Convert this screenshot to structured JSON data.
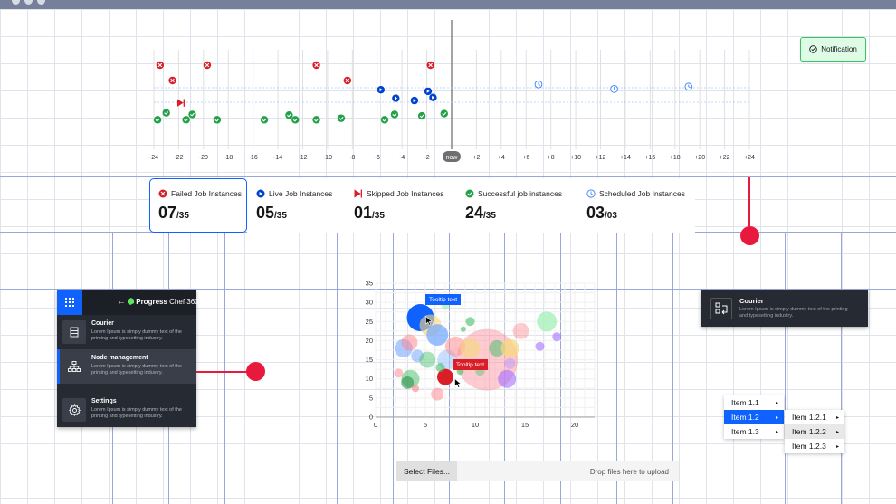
{
  "timeline": {
    "ticks": [
      "-24",
      "-22",
      "-20",
      "-18",
      "-16",
      "-14",
      "-12",
      "-10",
      "-8",
      "-6",
      "-4",
      "-2",
      "now",
      "+2",
      "+4",
      "+6",
      "+8",
      "+10",
      "+12",
      "+14",
      "+16",
      "+18",
      "+20",
      "+22",
      "+24"
    ],
    "now_label": "now",
    "events": [
      {
        "t": -23.5,
        "row": 1,
        "kind": "failed"
      },
      {
        "t": -22.5,
        "row": 2,
        "kind": "failed"
      },
      {
        "t": -19.7,
        "row": 1,
        "kind": "failed"
      },
      {
        "t": -10.9,
        "row": 1,
        "kind": "failed"
      },
      {
        "t": -8.4,
        "row": 2,
        "kind": "failed"
      },
      {
        "t": -1.7,
        "row": 1,
        "kind": "failed"
      },
      {
        "t": -21.8,
        "row": 3.45,
        "kind": "skipped"
      },
      {
        "t": -5.7,
        "row": 2.6,
        "kind": "live"
      },
      {
        "t": -4.5,
        "row": 3.15,
        "kind": "live"
      },
      {
        "t": -3.0,
        "row": 3.3,
        "kind": "live"
      },
      {
        "t": -1.9,
        "row": 2.7,
        "kind": "live"
      },
      {
        "t": -1.5,
        "row": 3.1,
        "kind": "live"
      },
      {
        "t": -23.0,
        "row": 4.1,
        "kind": "success"
      },
      {
        "t": -23.7,
        "row": 4.55,
        "kind": "success"
      },
      {
        "t": -21.4,
        "row": 4.55,
        "kind": "success"
      },
      {
        "t": -20.9,
        "row": 4.2,
        "kind": "success"
      },
      {
        "t": -18.9,
        "row": 4.55,
        "kind": "success"
      },
      {
        "t": -15.1,
        "row": 4.55,
        "kind": "success"
      },
      {
        "t": -13.1,
        "row": 4.25,
        "kind": "success"
      },
      {
        "t": -12.6,
        "row": 4.55,
        "kind": "success"
      },
      {
        "t": -10.9,
        "row": 4.55,
        "kind": "success"
      },
      {
        "t": -8.9,
        "row": 4.45,
        "kind": "success"
      },
      {
        "t": -5.4,
        "row": 4.55,
        "kind": "success"
      },
      {
        "t": -4.6,
        "row": 4.2,
        "kind": "success"
      },
      {
        "t": -2.4,
        "row": 4.3,
        "kind": "success"
      },
      {
        "t": -0.6,
        "row": 4.15,
        "kind": "success"
      },
      {
        "t": 7.0,
        "row": 2.25,
        "kind": "scheduled"
      },
      {
        "t": 13.1,
        "row": 2.55,
        "kind": "scheduled"
      },
      {
        "t": 19.1,
        "row": 2.4,
        "kind": "scheduled"
      }
    ]
  },
  "notification": {
    "label": "Notification"
  },
  "stats": [
    {
      "label": "Failed Job Instances",
      "value": "07",
      "total": "/35",
      "kind": "failed",
      "active": true,
      "width": 108
    },
    {
      "label": "Live Job Instances",
      "value": "05",
      "total": "/35",
      "kind": "live",
      "active": false,
      "width": 108
    },
    {
      "label": "Skipped Job Instances",
      "value": "01",
      "total": "/35",
      "kind": "skipped",
      "active": false,
      "width": 123
    },
    {
      "label": "Successful job instances",
      "value": "24",
      "total": "/35",
      "kind": "success",
      "active": false,
      "width": 134
    },
    {
      "label": "Scheduled Job Instances",
      "value": "03",
      "total": "/03",
      "kind": "scheduled",
      "active": false,
      "width": 130
    }
  ],
  "sidepanel": {
    "back_label": "←",
    "brand_bold": "Progress",
    "brand_rest": " Chef 360°",
    "items": [
      {
        "title": "Courier",
        "desc": "Lorem Ipsum is simply dummy text of the printing and typesetting industry.",
        "icon": "server-icon",
        "selected": false
      },
      {
        "title": "Node management",
        "desc": "Lorem Ipsum is simply dummy text of the printing and typesetting industry.",
        "icon": "hierarchy-icon",
        "selected": true
      },
      {
        "title": "Settings",
        "desc": "Lorem Ipsum is simply dummy text of the printing and typesetting industry.",
        "icon": "gear-icon",
        "selected": false
      }
    ]
  },
  "courier_card": {
    "title": "Courier",
    "desc": "Lorem Ipsum is simply dummy text of the printing and typesetting industry."
  },
  "chart_data": {
    "type": "scatter",
    "x_ticks": [
      "5",
      "10",
      "15",
      "20"
    ],
    "y_ticks": [
      "0",
      "5",
      "10",
      "15",
      "20",
      "25",
      "30",
      "35"
    ],
    "xlim": [
      0,
      22
    ],
    "ylim": [
      0,
      35
    ],
    "origin_label": "0",
    "points": [
      {
        "x": 4.5,
        "y": 26,
        "r": 15,
        "color": "#0f62fe",
        "opacity": 1
      },
      {
        "x": 5.5,
        "y": 24,
        "r": 12,
        "color": "#f7d97b",
        "opacity": 0.6
      },
      {
        "x": 6.2,
        "y": 21.5,
        "r": 12,
        "color": "#78a9ff",
        "opacity": 0.75
      },
      {
        "x": 2.8,
        "y": 18,
        "r": 10,
        "color": "#78a9ff",
        "opacity": 0.6
      },
      {
        "x": 3.4,
        "y": 19.5,
        "r": 9,
        "color": "#ff8389",
        "opacity": 0.5
      },
      {
        "x": 4.2,
        "y": 16,
        "r": 7,
        "color": "#4589ff",
        "opacity": 0.4
      },
      {
        "x": 5.2,
        "y": 15,
        "r": 9,
        "color": "#42be65",
        "opacity": 0.45
      },
      {
        "x": 7.2,
        "y": 15,
        "r": 11,
        "color": "#a6c8ff",
        "opacity": 0.6
      },
      {
        "x": 8.0,
        "y": 18.5,
        "r": 11,
        "color": "#ff8389",
        "opacity": 0.5
      },
      {
        "x": 11.2,
        "y": 15,
        "r": 34,
        "color": "#fa8b9a",
        "opacity": 0.45
      },
      {
        "x": 9.5,
        "y": 18,
        "r": 11,
        "color": "#f7d97b",
        "opacity": 0.6
      },
      {
        "x": 12.2,
        "y": 18,
        "r": 9,
        "color": "#42be65",
        "opacity": 0.5
      },
      {
        "x": 13.5,
        "y": 18,
        "r": 10,
        "color": "#f7d97b",
        "opacity": 0.7
      },
      {
        "x": 14.6,
        "y": 22.5,
        "r": 9,
        "color": "#ff8389",
        "opacity": 0.4
      },
      {
        "x": 17.2,
        "y": 25,
        "r": 11,
        "color": "#a7f0ba",
        "opacity": 0.8
      },
      {
        "x": 18.2,
        "y": 21,
        "r": 5,
        "color": "#a56eff",
        "opacity": 0.6
      },
      {
        "x": 16.5,
        "y": 18.5,
        "r": 5,
        "color": "#a56eff",
        "opacity": 0.6
      },
      {
        "x": 13.2,
        "y": 10,
        "r": 10,
        "color": "#a56eff",
        "opacity": 0.6
      },
      {
        "x": 13.5,
        "y": 14,
        "r": 6,
        "color": "#be95ff",
        "opacity": 0.5
      },
      {
        "x": 3.5,
        "y": 10,
        "r": 10,
        "color": "#42be65",
        "opacity": 0.5
      },
      {
        "x": 3.2,
        "y": 9,
        "r": 7,
        "color": "#198038",
        "opacity": 0.5
      },
      {
        "x": 2.3,
        "y": 11.5,
        "r": 5,
        "color": "#ff8389",
        "opacity": 0.5
      },
      {
        "x": 4.0,
        "y": 7.5,
        "r": 4,
        "color": "#ff8389",
        "opacity": 0.6
      },
      {
        "x": 6.2,
        "y": 6,
        "r": 7,
        "color": "#ff8389",
        "opacity": 0.5
      },
      {
        "x": 7.0,
        "y": 10.5,
        "r": 9,
        "color": "#da1e28",
        "opacity": 1
      },
      {
        "x": 6.5,
        "y": 13,
        "r": 5,
        "color": "#42be65",
        "opacity": 0.6
      },
      {
        "x": 8.5,
        "y": 12,
        "r": 4,
        "color": "#42be65",
        "opacity": 0.6
      },
      {
        "x": 9.5,
        "y": 25,
        "r": 5,
        "color": "#42be65",
        "opacity": 0.6
      },
      {
        "x": 8.8,
        "y": 23,
        "r": 3,
        "color": "#42be65",
        "opacity": 0.6
      },
      {
        "x": 7.0,
        "y": 29,
        "r": 4,
        "color": "#a7f0ba",
        "opacity": 0.7
      },
      {
        "x": 10.5,
        "y": 12,
        "r": 5,
        "color": "#42be65",
        "opacity": 0.4
      }
    ],
    "tooltips": [
      {
        "text": "Tooltip text",
        "color": "#0f62fe"
      },
      {
        "text": "Tooltip text",
        "color": "#da1e28"
      }
    ]
  },
  "menu": {
    "items": [
      {
        "label": "Item 1.1",
        "active": false
      },
      {
        "label": "Item 1.2",
        "active": true
      },
      {
        "label": "Item 1.3",
        "active": false
      }
    ],
    "submenu": [
      {
        "label": "Item 1.2.1",
        "hover": false
      },
      {
        "label": "Item 1.2.2",
        "hover": true
      },
      {
        "label": "Item 1.2.3",
        "hover": false
      }
    ],
    "caret": "▸"
  },
  "uploader": {
    "button_label": "Select Files...",
    "drop_text": "Drop files here to upload"
  },
  "colors": {
    "failed": "#da1e28",
    "live": "#0043ce",
    "skipped": "#da1e28",
    "success": "#24a148",
    "scheduled": "#4589ff",
    "accent": "#0f62fe"
  }
}
